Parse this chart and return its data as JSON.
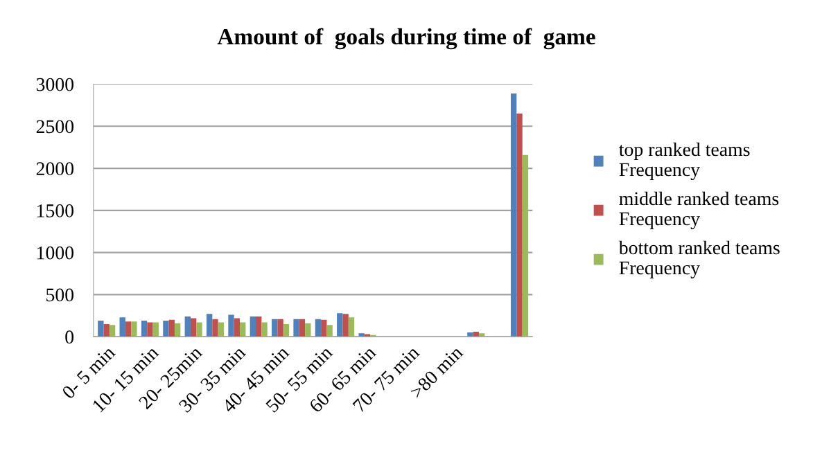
{
  "chart_data": {
    "type": "bar",
    "title": "Amount of  goals during time of  game",
    "categories": [
      "0- 5 min",
      null,
      "10- 15 min",
      null,
      "20- 25min",
      null,
      "30- 35 min",
      null,
      "40- 45 min",
      null,
      "50- 55 min",
      null,
      "60- 65 min",
      null,
      "70- 75 min",
      null,
      ">80 min",
      null,
      null,
      null
    ],
    "series": [
      {
        "name": "top ranked teams\nFrequency",
        "color": "#4f81bd",
        "values": [
          190,
          230,
          190,
          190,
          240,
          270,
          260,
          240,
          210,
          210,
          210,
          280,
          40,
          0,
          0,
          0,
          0,
          50,
          null,
          2890
        ]
      },
      {
        "name": "middle ranked teams\nFrequency",
        "color": "#c0504d",
        "values": [
          150,
          180,
          170,
          200,
          220,
          210,
          220,
          240,
          210,
          210,
          200,
          270,
          30,
          0,
          0,
          0,
          0,
          60,
          null,
          2650
        ]
      },
      {
        "name": "bottom ranked teams\nFrequency",
        "color": "#9bbb59",
        "values": [
          140,
          180,
          170,
          160,
          170,
          170,
          170,
          170,
          150,
          160,
          140,
          230,
          20,
          0,
          0,
          0,
          0,
          40,
          null,
          2160
        ]
      }
    ],
    "ylim": [
      0,
      3000
    ],
    "yticks": [
      0,
      500,
      1000,
      1500,
      2000,
      2500,
      3000
    ],
    "grid": "y",
    "legend": "right"
  }
}
